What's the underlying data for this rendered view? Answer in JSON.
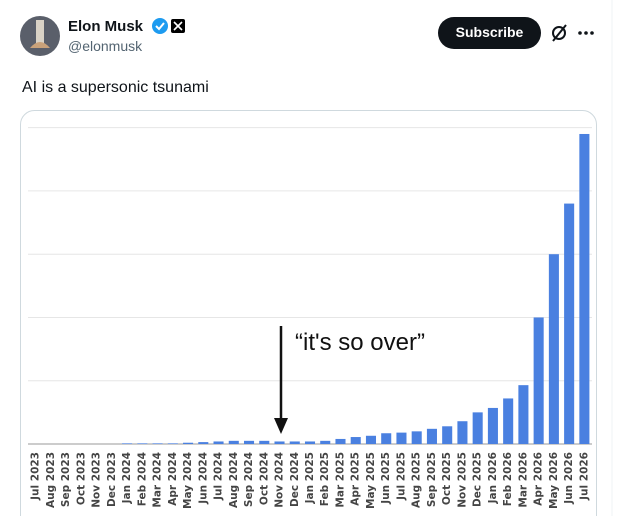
{
  "header": {
    "name": "Elon Musk",
    "handle": "@elonmusk",
    "button": "Subscribe"
  },
  "post": {
    "text": "AI is a supersonic tsunami"
  },
  "chart_data": {
    "type": "bar",
    "annotation": "“it's so over”",
    "categories": [
      "Jul 2023",
      "Aug 2023",
      "Sep 2023",
      "Oct 2023",
      "Nov 2023",
      "Dec 2023",
      "Jan 2024",
      "Feb 2024",
      "Mar 2024",
      "Apr 2024",
      "May 2024",
      "Jun 2024",
      "Jul 2024",
      "Aug 2024",
      "Sep 2024",
      "Oct 2024",
      "Nov 2024",
      "Dec 2024",
      "Jan 2025",
      "Feb 2025",
      "Mar 2025",
      "Apr 2025",
      "May 2025",
      "Jun 2025",
      "Jul 2025",
      "Aug 2025",
      "Sep 2025",
      "Oct 2025",
      "Nov 2025",
      "Dec 2025",
      "Jan 2026",
      "Feb 2026",
      "Mar 2026",
      "Apr 2026",
      "May 2026",
      "Jun 2026",
      "Jul 2026"
    ],
    "values": [
      0,
      0,
      0,
      0,
      0,
      0,
      0.01,
      0.01,
      0.01,
      0.01,
      0.02,
      0.03,
      0.04,
      0.05,
      0.05,
      0.05,
      0.04,
      0.04,
      0.04,
      0.05,
      0.08,
      0.11,
      0.13,
      0.17,
      0.18,
      0.2,
      0.24,
      0.28,
      0.36,
      0.5,
      0.57,
      0.72,
      0.93,
      2.0,
      3.0,
      3.8,
      4.9
    ],
    "color": "#4a80e0",
    "ylim": [
      0,
      5.2
    ],
    "gridlines": [
      1,
      2,
      3,
      4,
      5
    ]
  }
}
